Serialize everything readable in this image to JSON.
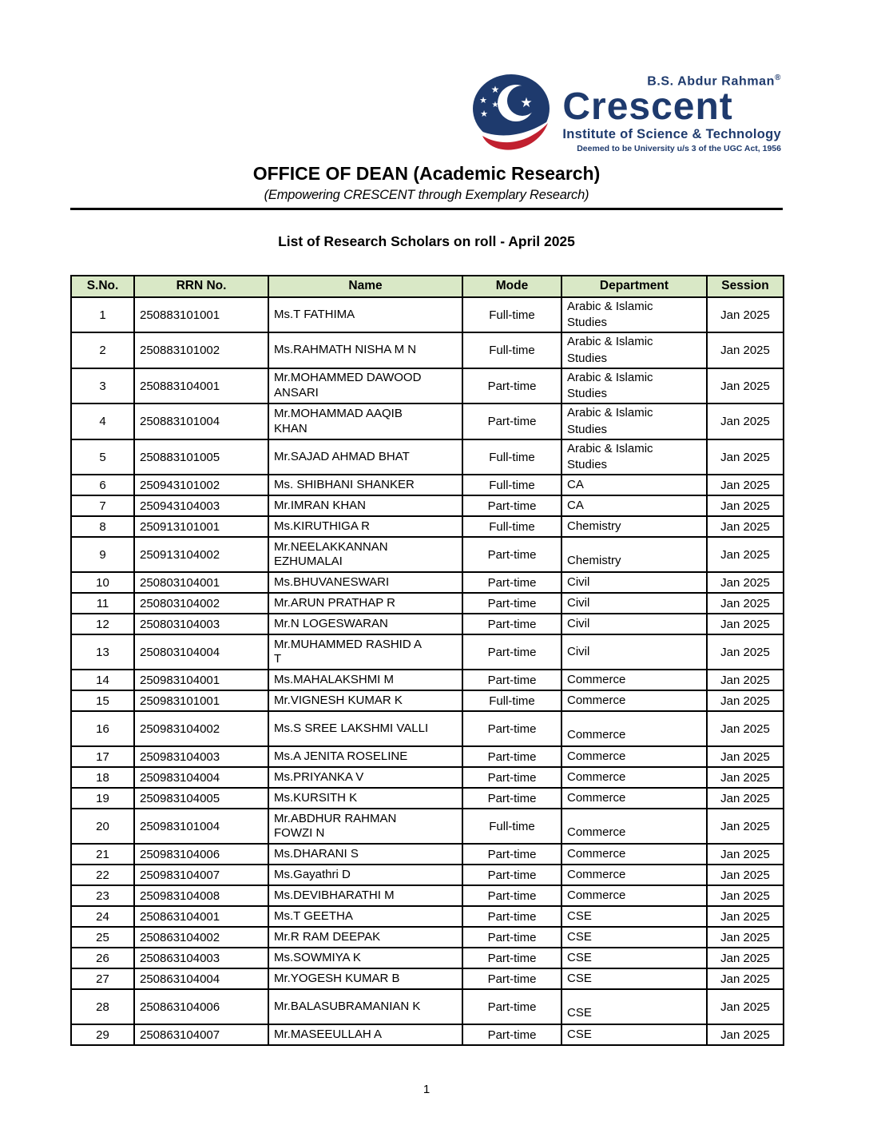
{
  "logo": {
    "brand_top": "B.S. Abdur Rahman",
    "registered_mark": "®",
    "brand_name": "Crescent",
    "brand_sub": "Institute of Science & Technology",
    "brand_tagline": "Deemed to be University u/s 3 of the UGC Act, 1956",
    "colors": {
      "navy": "#1e3a6d",
      "red": "#c1202f"
    }
  },
  "header": {
    "office_title": "OFFICE OF DEAN (Academic Research)",
    "office_subtitle": "(Empowering CRESCENT through Exemplary Research)"
  },
  "document": {
    "title": "List of Research Scholars on roll - April 2025",
    "page_number": "1"
  },
  "table": {
    "header_bg": "#d9e8c6",
    "columns": [
      "S.No.",
      "RRN No.",
      "Name",
      "Mode",
      "Department",
      "Session"
    ],
    "rows": [
      {
        "sno": "1",
        "rrn": "250883101001",
        "name": "Ms.T FATHIMA",
        "mode": "Full-time",
        "department": "Arabic & Islamic\nStudies",
        "session": "Jan 2025"
      },
      {
        "sno": "2",
        "rrn": "250883101002",
        "name": "Ms.RAHMATH NISHA M N",
        "mode": "Full-time",
        "department": "Arabic & Islamic\nStudies",
        "session": "Jan 2025"
      },
      {
        "sno": "3",
        "rrn": "250883104001",
        "name": "Mr.MOHAMMED DAWOOD\nANSARI",
        "mode": "Part-time",
        "department": "Arabic & Islamic\nStudies",
        "session": "Jan 2025"
      },
      {
        "sno": "4",
        "rrn": "250883101004",
        "name": "Mr.MOHAMMAD AAQIB\nKHAN",
        "mode": "Part-time",
        "department": "Arabic & Islamic\nStudies",
        "session": "Jan 2025"
      },
      {
        "sno": "5",
        "rrn": "250883101005",
        "name": "Mr.SAJAD AHMAD BHAT",
        "mode": "Full-time",
        "department": "Arabic & Islamic\nStudies",
        "session": "Jan 2025"
      },
      {
        "sno": "6",
        "rrn": "250943101002",
        "name": "Ms. SHIBHANI SHANKER",
        "mode": "Full-time",
        "department": "CA",
        "session": "Jan 2025"
      },
      {
        "sno": "7",
        "rrn": "250943104003",
        "name": "Mr.IMRAN KHAN",
        "mode": "Part-time",
        "department": "CA",
        "session": "Jan 2025"
      },
      {
        "sno": "8",
        "rrn": "250913101001",
        "name": "Ms.KIRUTHIGA R",
        "mode": "Full-time",
        "department": "Chemistry",
        "session": "Jan 2025"
      },
      {
        "sno": "9",
        "rrn": "250913104002",
        "name": "Mr.NEELAKKANNAN\nEZHUMALAI",
        "mode": "Part-time",
        "department": "Chemistry",
        "session": "Jan 2025"
      },
      {
        "sno": "10",
        "rrn": "250803104001",
        "name": "Ms.BHUVANESWARI",
        "mode": "Part-time",
        "department": "Civil",
        "session": "Jan 2025"
      },
      {
        "sno": "11",
        "rrn": "250803104002",
        "name": "Mr.ARUN PRATHAP R",
        "mode": "Part-time",
        "department": "Civil",
        "session": "Jan 2025"
      },
      {
        "sno": "12",
        "rrn": "250803104003",
        "name": "Mr.N LOGESWARAN",
        "mode": "Part-time",
        "department": "Civil",
        "session": "Jan 2025"
      },
      {
        "sno": "13",
        "rrn": "250803104004",
        "name": "Mr.MUHAMMED RASHID A\nT",
        "mode": "Part-time",
        "department": "Civil",
        "session": "Jan 2025"
      },
      {
        "sno": "14",
        "rrn": "250983104001",
        "name": "Ms.MAHALAKSHMI M",
        "mode": "Part-time",
        "department": "Commerce",
        "session": "Jan 2025"
      },
      {
        "sno": "15",
        "rrn": "250983101001",
        "name": "Mr.VIGNESH KUMAR K",
        "mode": "Full-time",
        "department": "Commerce",
        "session": "Jan 2025"
      },
      {
        "sno": "16",
        "rrn": "250983104002",
        "name": "Ms.S SREE LAKSHMI VALLI",
        "mode": "Part-time",
        "department": "Commerce",
        "session": "Jan 2025"
      },
      {
        "sno": "17",
        "rrn": "250983104003",
        "name": "Ms.A JENITA ROSELINE",
        "mode": "Part-time",
        "department": "Commerce",
        "session": "Jan 2025"
      },
      {
        "sno": "18",
        "rrn": "250983104004",
        "name": "Ms.PRIYANKA V",
        "mode": "Part-time",
        "department": "Commerce",
        "session": "Jan 2025"
      },
      {
        "sno": "19",
        "rrn": "250983104005",
        "name": "Ms.KURSITH K",
        "mode": "Part-time",
        "department": "Commerce",
        "session": "Jan 2025"
      },
      {
        "sno": "20",
        "rrn": "250983101004",
        "name": "Mr.ABDHUR RAHMAN\nFOWZI N",
        "mode": "Full-time",
        "department": "Commerce",
        "session": "Jan 2025"
      },
      {
        "sno": "21",
        "rrn": "250983104006",
        "name": "Ms.DHARANI S",
        "mode": "Part-time",
        "department": "Commerce",
        "session": "Jan 2025"
      },
      {
        "sno": "22",
        "rrn": "250983104007",
        "name": "Ms.Gayathri D",
        "mode": "Part-time",
        "department": "Commerce",
        "session": "Jan 2025"
      },
      {
        "sno": "23",
        "rrn": "250983104008",
        "name": "Ms.DEVIBHARATHI M",
        "mode": "Part-time",
        "department": "Commerce",
        "session": "Jan 2025"
      },
      {
        "sno": "24",
        "rrn": "250863104001",
        "name": "Ms.T GEETHA",
        "mode": "Part-time",
        "department": "CSE",
        "session": "Jan 2025"
      },
      {
        "sno": "25",
        "rrn": "250863104002",
        "name": "Mr.R RAM DEEPAK",
        "mode": "Part-time",
        "department": "CSE",
        "session": "Jan 2025"
      },
      {
        "sno": "26",
        "rrn": "250863104003",
        "name": "Ms.SOWMIYA K",
        "mode": "Part-time",
        "department": "CSE",
        "session": "Jan 2025"
      },
      {
        "sno": "27",
        "rrn": "250863104004",
        "name": "Mr.YOGESH KUMAR B",
        "mode": "Part-time",
        "department": "CSE",
        "session": "Jan 2025"
      },
      {
        "sno": "28",
        "rrn": "250863104006",
        "name": "Mr.BALASUBRAMANIAN K",
        "mode": "Part-time",
        "department": "CSE",
        "session": "Jan 2025"
      },
      {
        "sno": "29",
        "rrn": "250863104007",
        "name": "Mr.MASEEULLAH A",
        "mode": "Part-time",
        "department": "CSE",
        "session": "Jan 2025"
      }
    ]
  }
}
